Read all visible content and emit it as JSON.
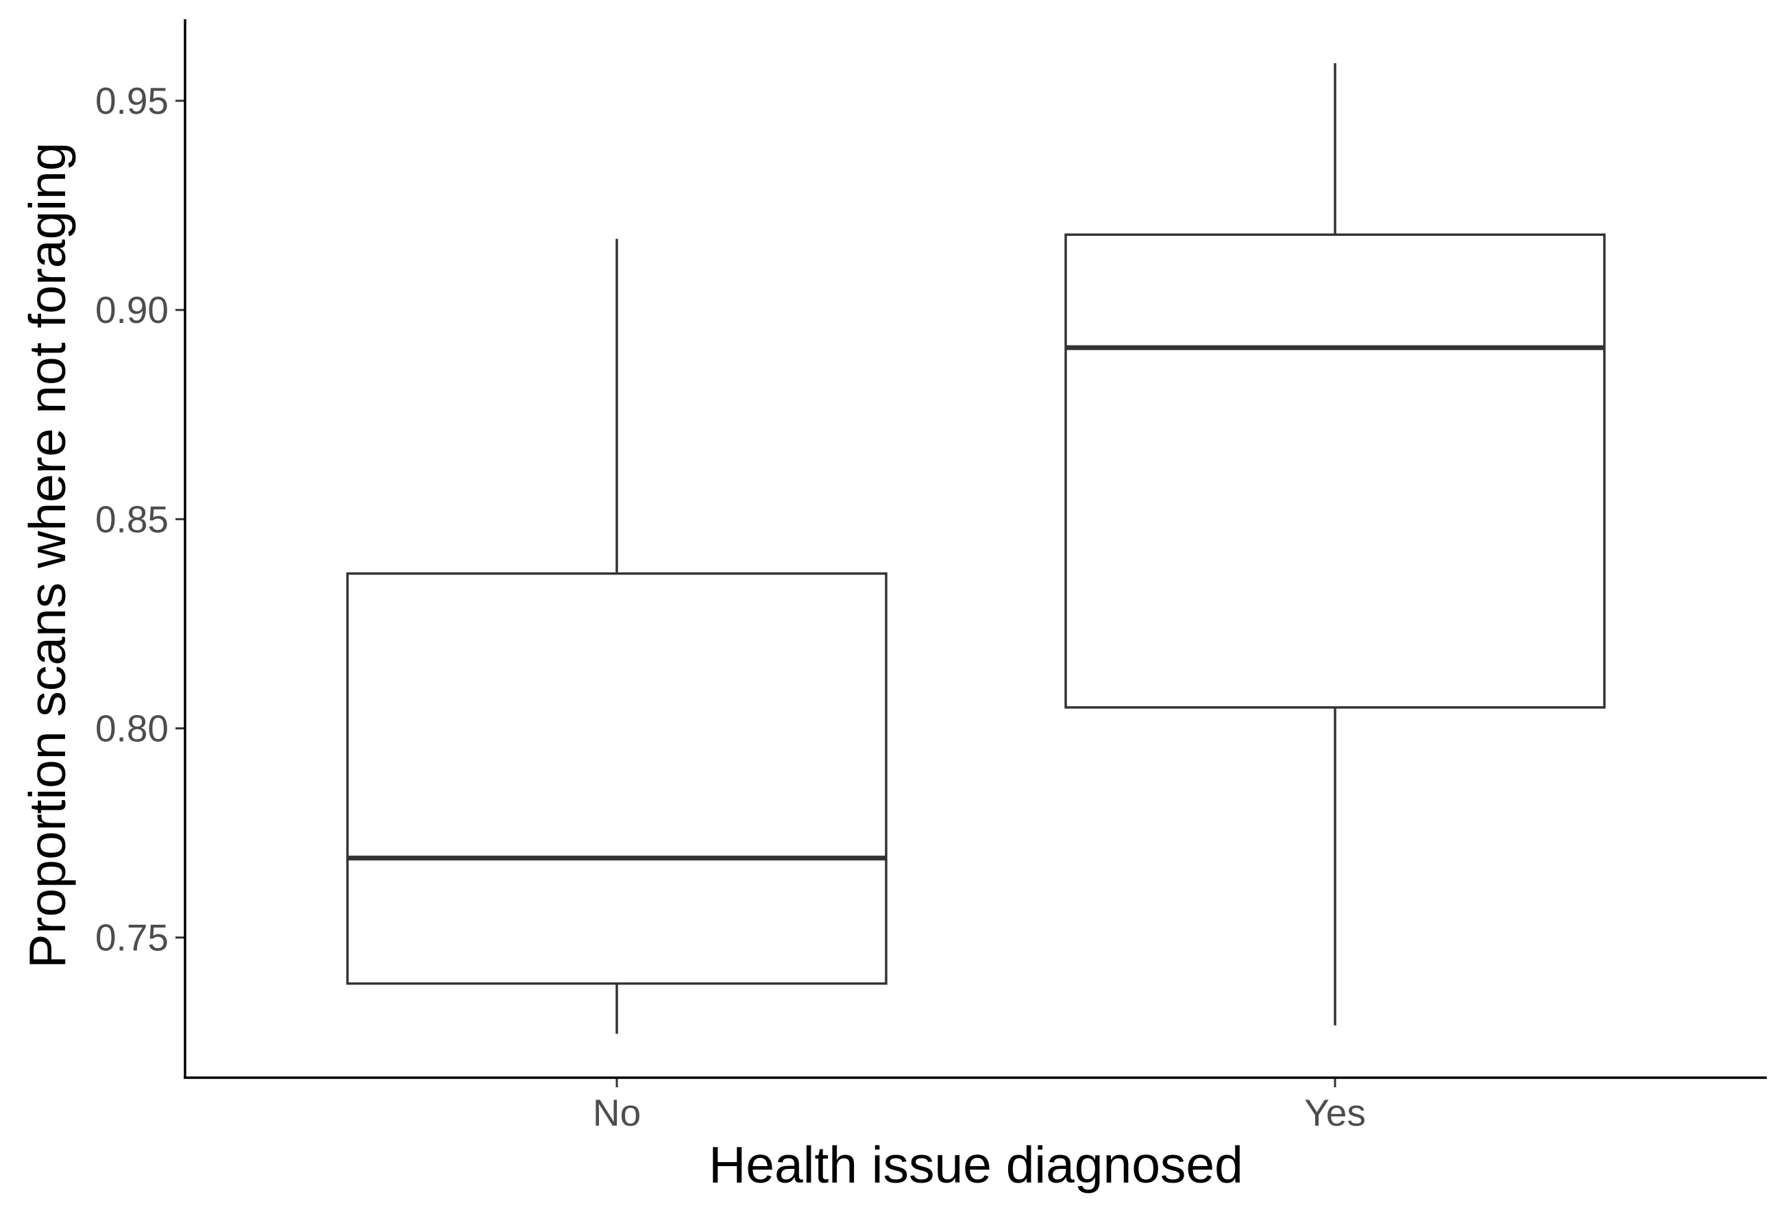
{
  "chart_data": {
    "type": "boxplot",
    "xlabel": "Health issue diagnosed",
    "ylabel": "Proportion scans where not foraging",
    "categories": [
      "No",
      "Yes"
    ],
    "boxes": [
      {
        "category": "No",
        "min": 0.727,
        "q1": 0.739,
        "median": 0.769,
        "q3": 0.837,
        "max": 0.917
      },
      {
        "category": "Yes",
        "min": 0.729,
        "q1": 0.805,
        "median": 0.891,
        "q3": 0.918,
        "max": 0.959
      }
    ],
    "yticks": [
      0.75,
      0.8,
      0.85,
      0.9,
      0.95
    ],
    "ytick_labels": [
      "0.75",
      "0.80",
      "0.85",
      "0.90",
      "0.95"
    ],
    "ylim": [
      0.7165,
      0.9695
    ],
    "grid": false,
    "colors": {
      "box_fill": "#ffffff",
      "box_line": "#333333",
      "axis": "#000000",
      "tick_label": "#4d4d4d"
    }
  }
}
